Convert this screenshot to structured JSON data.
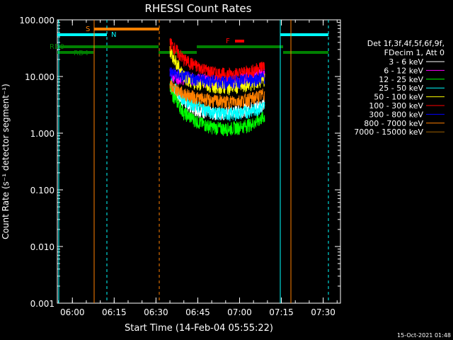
{
  "chart_data": {
    "type": "line",
    "title": "RHESSI Count Rates",
    "xlabel": "Start Time (14-Feb-04 05:55:22)",
    "ylabel": "Count Rate (s⁻¹ detector segment⁻¹)",
    "ylim": [
      0.001,
      100
    ],
    "yscale": "log",
    "xlim_minutes": [
      -5.4,
      96.2
    ],
    "x_ticks": [
      "06:00",
      "06:15",
      "06:30",
      "06:45",
      "07:00",
      "07:15",
      "07:30"
    ],
    "y_ticks": [
      "0.001",
      "0.010",
      "0.100",
      "1.000",
      "10.000",
      "100.000"
    ],
    "legend": {
      "position": "right",
      "header": [
        "Det 1f,3f,4f,5f,6f,9f,",
        "FDecim 1, Att 0"
      ]
    },
    "series": [
      {
        "name": "3 - 6 keV",
        "color": "#ffffff",
        "values": [
          7.0,
          3.5,
          2.6,
          2.3,
          2.3,
          2.5,
          2.9,
          3.4
        ]
      },
      {
        "name": "6 - 12 keV",
        "color": "#ff00ff",
        "values": [
          11.0,
          9.5,
          9.0,
          8.5,
          8.3,
          8.8,
          10.0,
          11.5
        ]
      },
      {
        "name": "12 - 25 keV",
        "color": "#00ff00",
        "values": [
          6.0,
          2.3,
          1.6,
          1.3,
          1.2,
          1.3,
          1.5,
          2.0
        ]
      },
      {
        "name": "25 - 50 keV",
        "color": "#00ffff",
        "values": [
          8.0,
          4.0,
          3.0,
          2.4,
          2.2,
          2.3,
          2.6,
          3.0
        ]
      },
      {
        "name": "50 - 100 keV",
        "color": "#ffff00",
        "values": [
          30.0,
          10.0,
          7.5,
          7.0,
          6.5,
          6.8,
          7.5,
          9.0
        ]
      },
      {
        "name": "100 - 300 keV",
        "color": "#ff0000",
        "values": [
          40.0,
          20.0,
          15.0,
          12.0,
          11.0,
          11.5,
          13.0,
          16.0
        ]
      },
      {
        "name": "300 - 800 keV",
        "color": "#0000ff",
        "values": [
          12.0,
          10.0,
          9.0,
          8.5,
          8.0,
          8.5,
          9.0,
          10.0
        ]
      },
      {
        "name": "800 - 7000 keV",
        "color": "#ff8000",
        "values": [
          7.0,
          5.0,
          4.2,
          3.8,
          3.6,
          3.8,
          4.2,
          5.0
        ]
      },
      {
        "name": "7000 - 15000 keV",
        "color": "#a06000",
        "values": []
      }
    ],
    "series_x_minutes": [
      0,
      5,
      10,
      15,
      20,
      25,
      30,
      34
    ],
    "series_x_origin_label": "06:35",
    "flags": [
      {
        "label": "S",
        "color": "#ff8000"
      },
      {
        "label": "N",
        "color": "#00ffff"
      },
      {
        "label": "F",
        "color": "#ff0000"
      },
      {
        "label": "RD0",
        "color": "#008000"
      },
      {
        "label": "RD4",
        "color": "#008000"
      }
    ],
    "footer_timestamp": "15-Oct-2021 01:48"
  }
}
